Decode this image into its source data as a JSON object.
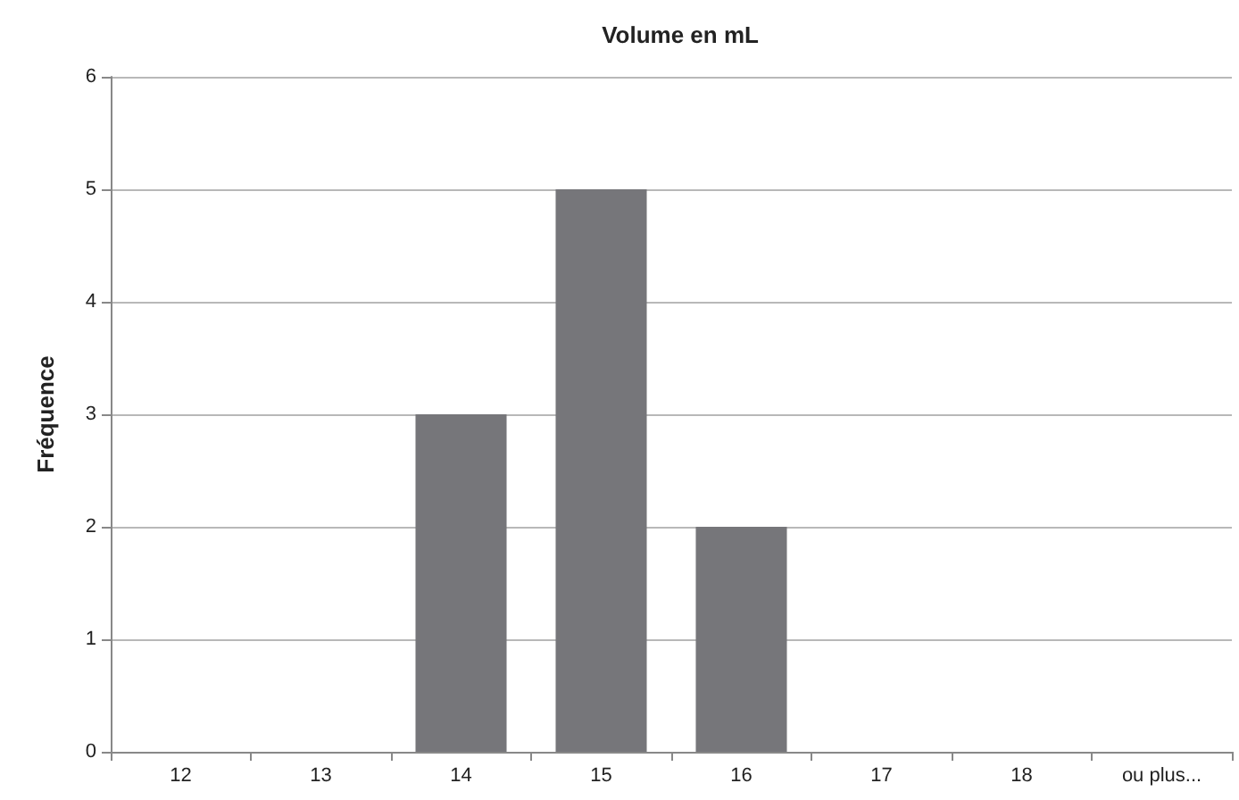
{
  "chart_data": {
    "type": "bar",
    "title": "Volume en mL",
    "ylabel": "Fréquence",
    "categories": [
      "12",
      "13",
      "14",
      "15",
      "16",
      "17",
      "18",
      "ou plus..."
    ],
    "values": [
      0,
      0,
      3,
      5,
      2,
      0,
      0,
      0
    ],
    "color": "#76767a",
    "ylim": [
      0,
      6
    ],
    "yticks": [
      0,
      1,
      2,
      3,
      4,
      5,
      6
    ],
    "grid": "y"
  }
}
